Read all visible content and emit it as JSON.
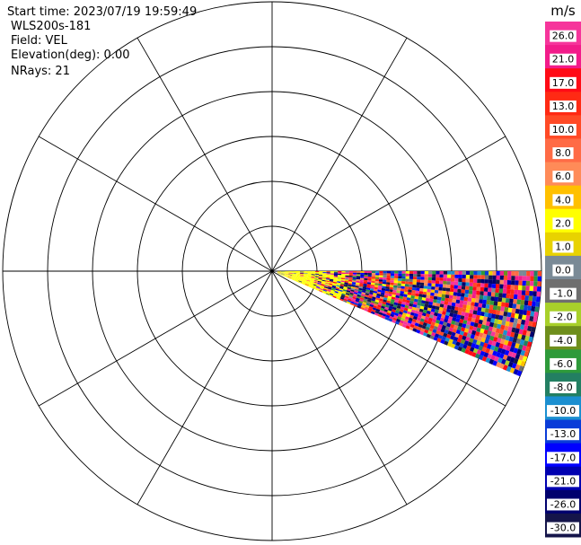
{
  "header": {
    "start_time": "Start time: 2023/07/19 19:59:49",
    "radar_name": "WLS200s-181",
    "field": "Field: VEL",
    "elevation": "Elevation(deg): 0.00",
    "nrays": "NRays: 21"
  },
  "colorbar": {
    "unit_label": "m/s",
    "tick_labels": [
      "26.0",
      "21.0",
      "17.0",
      "13.0",
      "10.0",
      "8.0",
      "6.0",
      "4.0",
      "2.0",
      "1.0",
      "0.0",
      "-1.0",
      "-2.0",
      "-4.0",
      "-6.0",
      "-8.0",
      "-10.0",
      "-13.0",
      "-17.0",
      "-21.0",
      "-26.0",
      "-30.0"
    ],
    "bands": [
      {
        "color": "#f6359b",
        "from": 26,
        "to": 30
      },
      {
        "color": "#f21c8a",
        "from": 21,
        "to": 26
      },
      {
        "color": "#ff0b16",
        "from": 17,
        "to": 21
      },
      {
        "color": "#ff2a14",
        "from": 13,
        "to": 17
      },
      {
        "color": "#ff4a26",
        "from": 10,
        "to": 13
      },
      {
        "color": "#ff6b45",
        "from": 8,
        "to": 10
      },
      {
        "color": "#ff8b58",
        "from": 6,
        "to": 8
      },
      {
        "color": "#ffc000",
        "from": 4,
        "to": 6
      },
      {
        "color": "#ffff00",
        "from": 2,
        "to": 4
      },
      {
        "color": "#e8d200",
        "from": 1,
        "to": 2
      },
      {
        "color": "#7a8a96",
        "from": 0,
        "to": 1
      },
      {
        "color": "#6f6f6f",
        "from": -1,
        "to": 0
      },
      {
        "color": "#a8d02a",
        "from": -2,
        "to": -1
      },
      {
        "color": "#6e8e1c",
        "from": -4,
        "to": -2
      },
      {
        "color": "#2e9a3a",
        "from": -6,
        "to": -4
      },
      {
        "color": "#237f62",
        "from": -8,
        "to": -6
      },
      {
        "color": "#1b8fd0",
        "from": -10,
        "to": -8
      },
      {
        "color": "#0a3cd8",
        "from": -13,
        "to": -10
      },
      {
        "color": "#0000ff",
        "from": -17,
        "to": -13
      },
      {
        "color": "#0000b0",
        "from": -21,
        "to": -17
      },
      {
        "color": "#00006e",
        "from": -26,
        "to": -21
      },
      {
        "color": "#15154a",
        "from": -30,
        "to": -26
      }
    ]
  },
  "chart_data": {
    "type": "heatmap",
    "projection": "polar (PPI)",
    "field": "VEL",
    "unit": "m/s",
    "value_range": [
      -30,
      30
    ],
    "range_rings": 6,
    "radial_lines": 12,
    "sector_azimuth_deg": [
      90,
      113
    ],
    "near_field_value_ms": 3,
    "far_field": "mixed values across full scale",
    "axes_visible": false,
    "grid": true
  }
}
